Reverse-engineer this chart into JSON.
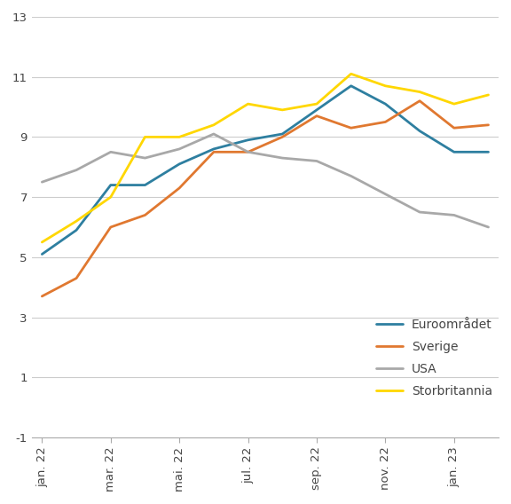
{
  "x_tick_labels": [
    "jan. 22",
    "mar. 22",
    "mai. 22",
    "jul. 22",
    "sep. 22",
    "nov. 22",
    "jan. 23"
  ],
  "x_tick_positions": [
    0,
    2,
    4,
    6,
    8,
    10,
    12
  ],
  "euroområdet": [
    5.1,
    5.9,
    7.4,
    7.4,
    8.1,
    8.6,
    8.9,
    9.1,
    9.9,
    10.7,
    10.1,
    9.2,
    8.5,
    8.5
  ],
  "sverige": [
    3.7,
    4.3,
    6.0,
    6.4,
    7.3,
    8.5,
    8.5,
    9.0,
    9.7,
    9.3,
    9.5,
    10.2,
    9.3,
    9.4
  ],
  "usa": [
    7.5,
    7.9,
    8.5,
    8.3,
    8.6,
    9.1,
    8.5,
    8.3,
    8.2,
    7.7,
    7.1,
    6.5,
    6.4,
    6.0
  ],
  "storbritannia": [
    5.5,
    6.2,
    7.0,
    9.0,
    9.0,
    9.4,
    10.1,
    9.9,
    10.1,
    11.1,
    10.7,
    10.5,
    10.1,
    10.4
  ],
  "colors": {
    "euroområdet": "#2E7FA0",
    "sverige": "#E07830",
    "usa": "#A8A8A8",
    "storbritannia": "#FFD700"
  },
  "ylim": [
    -1,
    13
  ],
  "yticks": [
    -1,
    1,
    3,
    5,
    7,
    9,
    11,
    13
  ],
  "legend_labels": [
    "Euroområdet",
    "Sverige",
    "USA",
    "Storbritannia"
  ],
  "linewidth": 2.0
}
